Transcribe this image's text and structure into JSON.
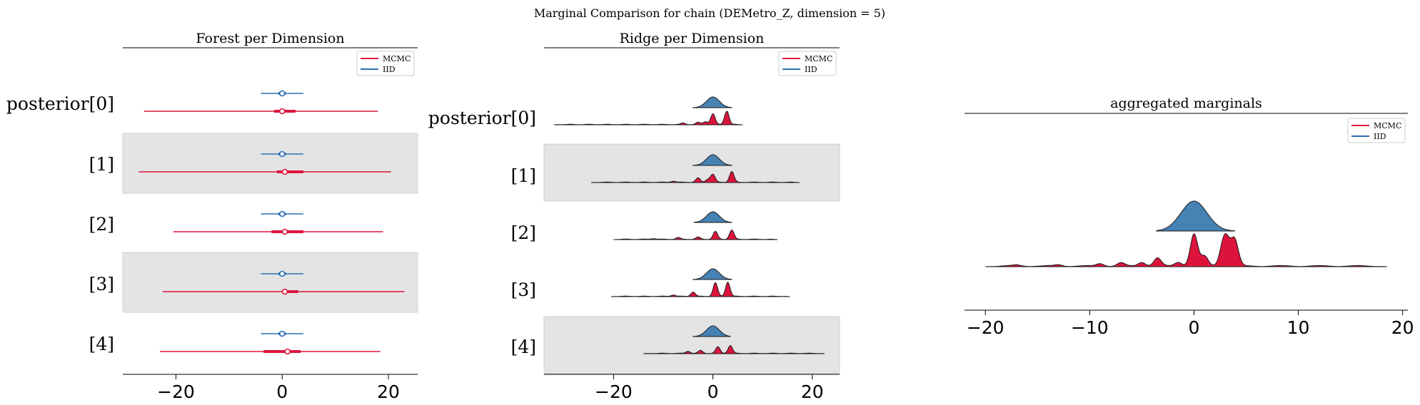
{
  "figure": {
    "suptitle": "Marginal Comparison for chain (DEMetro_Z, dimension = 5)",
    "colors": {
      "mcmc": "#dc143c",
      "iid": "#2f6fb5",
      "iid_fill": "#4682b4",
      "band": "#e4e4e4",
      "axis": "#000000"
    }
  },
  "chart_data": [
    {
      "type": "forest",
      "title": "Forest per Dimension",
      "xlabel": "",
      "ylabel": "",
      "xlim": [
        -30,
        25.5
      ],
      "xticks": [
        -20,
        0,
        20
      ],
      "xtick_labels": [
        "−20",
        "0",
        "20"
      ],
      "rows": [
        "posterior[0]",
        "[1]",
        "[2]",
        "[3]",
        "[4]"
      ],
      "shaded_rows": [
        1,
        3
      ],
      "legend": {
        "placement": "top-right",
        "entries": [
          "MCMC",
          "IID"
        ]
      },
      "series": [
        {
          "name": "MCMC",
          "min": [
            -26,
            -27,
            -20.5,
            -22.5,
            -23
          ],
          "max": [
            18,
            20.5,
            19,
            23,
            18.5
          ],
          "q_low": [
            -1.5,
            -1,
            -2,
            0,
            -3.5
          ],
          "q_high": [
            2.5,
            4,
            4,
            3,
            3.5
          ],
          "median": [
            0,
            0.5,
            0.5,
            0.5,
            1
          ]
        },
        {
          "name": "IID",
          "min": [
            -4,
            -4,
            -4,
            -4,
            -4
          ],
          "max": [
            4,
            4,
            4,
            4,
            4
          ],
          "q_low": [
            -0.7,
            -0.7,
            -0.7,
            -0.7,
            -0.7
          ],
          "q_high": [
            0.7,
            0.7,
            0.7,
            0.7,
            0.7
          ],
          "median": [
            0,
            0,
            0,
            0,
            0
          ]
        }
      ]
    },
    {
      "type": "ridgeline",
      "title": "Ridge per Dimension",
      "xlabel": "",
      "ylabel": "",
      "xlim": [
        -34,
        25.5
      ],
      "xticks": [
        -20,
        0,
        20
      ],
      "xtick_labels": [
        "−20",
        "0",
        "20"
      ],
      "rows": [
        "posterior[0]",
        "[1]",
        "[2]",
        "[3]",
        "[4]"
      ],
      "shaded_rows": [
        1,
        3
      ],
      "legend": {
        "placement": "top-right",
        "entries": [
          "MCMC",
          "IID"
        ]
      },
      "series": [
        {
          "name": "IID",
          "ranges": [
            [
              -4,
              3.8
            ],
            [
              -4,
              3.8
            ],
            [
              -3.8,
              3.8
            ],
            [
              -4,
              3.8
            ],
            [
              -4,
              3.5
            ]
          ]
        },
        {
          "name": "MCMC",
          "ranges": [
            [
              -32,
              6
            ],
            [
              -24.5,
              17.5
            ],
            [
              -20,
              13
            ],
            [
              -20.5,
              15.5
            ],
            [
              -14,
              22.5
            ]
          ],
          "peaks": [
            [
              [
                0,
                0.75
              ],
              [
                2.8,
                0.95
              ],
              [
                -1.5,
                0.2
              ],
              [
                -3,
                0.15
              ],
              [
                -6,
                0.1
              ]
            ],
            [
              [
                0,
                0.55
              ],
              [
                3.8,
                0.75
              ],
              [
                -3,
                0.3
              ],
              [
                -1,
                0.2
              ],
              [
                -8,
                0.08
              ]
            ],
            [
              [
                0.5,
                0.55
              ],
              [
                3.8,
                0.65
              ],
              [
                -3,
                0.15
              ],
              [
                -7,
                0.12
              ],
              [
                -12,
                0.06
              ]
            ],
            [
              [
                0.5,
                0.95
              ],
              [
                3,
                1.0
              ],
              [
                -4,
                0.3
              ],
              [
                -8,
                0.1
              ]
            ],
            [
              [
                1,
                0.45
              ],
              [
                3.5,
                0.55
              ],
              [
                -2.5,
                0.2
              ],
              [
                -5,
                0.15
              ]
            ]
          ]
        }
      ]
    },
    {
      "type": "ridgeline",
      "title": "aggregated marginals",
      "xlabel": "",
      "ylabel": "",
      "xlim": [
        -22,
        20.5
      ],
      "xticks": [
        -20,
        -10,
        0,
        10,
        20
      ],
      "xtick_labels": [
        "−20",
        "−10",
        "0",
        "10",
        "20"
      ],
      "legend": {
        "placement": "top-right",
        "entries": [
          "MCMC",
          "IID"
        ]
      },
      "series": [
        {
          "name": "IID",
          "range": [
            -3.6,
            3.9
          ]
        },
        {
          "name": "MCMC",
          "range": [
            -20,
            18.5
          ],
          "peaks": [
            [
              0,
              1.0
            ],
            [
              1,
              0.3
            ],
            [
              2.8,
              0.62
            ],
            [
              3.2,
              0.55
            ],
            [
              3.9,
              0.8
            ],
            [
              -1.5,
              0.12
            ],
            [
              -3.5,
              0.25
            ],
            [
              -5,
              0.12
            ],
            [
              -7,
              0.1
            ],
            [
              -9,
              0.08
            ],
            [
              -13,
              0.04
            ],
            [
              -17,
              0.03
            ]
          ]
        }
      ]
    }
  ]
}
